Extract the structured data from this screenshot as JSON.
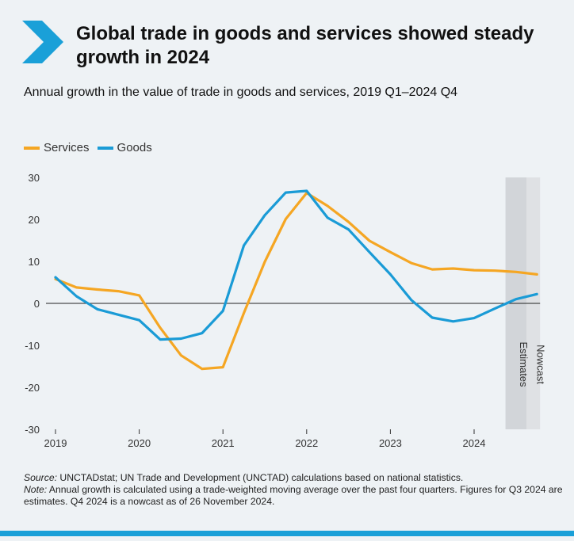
{
  "header": {
    "title": "Global trade in goods and services showed steady growth in 2024",
    "subtitle": "Annual growth in the value of trade in goods and services, 2019 Q1–2024 Q4"
  },
  "colors": {
    "services": "#f5a623",
    "goods": "#1a9bd6",
    "accent": "#1aa0d8"
  },
  "icons": {
    "title_marker": "chevron-right-icon"
  },
  "chart_data": {
    "type": "line",
    "x": [
      "2019Q1",
      "2019Q2",
      "2019Q3",
      "2019Q4",
      "2020Q1",
      "2020Q2",
      "2020Q3",
      "2020Q4",
      "2021Q1",
      "2021Q2",
      "2021Q3",
      "2021Q4",
      "2022Q1",
      "2022Q2",
      "2022Q3",
      "2022Q4",
      "2023Q1",
      "2023Q2",
      "2023Q3",
      "2023Q4",
      "2024Q1",
      "2024Q2",
      "2024Q3",
      "2024Q4"
    ],
    "series": [
      {
        "name": "Services",
        "values": [
          5.8,
          3.8,
          3.3,
          2.9,
          1.9,
          -5.8,
          -12.4,
          -15.6,
          -15.2,
          -2.3,
          9.9,
          20.1,
          26.3,
          23.2,
          19.4,
          14.9,
          12.2,
          9.6,
          8.1,
          8.3,
          7.9,
          7.8,
          7.5,
          6.9
        ]
      },
      {
        "name": "Goods",
        "values": [
          6.2,
          1.7,
          -1.4,
          -2.7,
          -4.0,
          -8.6,
          -8.4,
          -7.1,
          -1.8,
          13.8,
          21.0,
          26.4,
          26.8,
          20.4,
          17.6,
          12.2,
          6.9,
          0.8,
          -3.4,
          -4.3,
          -3.5,
          -1.2,
          1.0,
          2.2
        ]
      }
    ],
    "xticks": [
      {
        "label": "2019",
        "x": "2019Q1"
      },
      {
        "label": "2020",
        "x": "2020Q1"
      },
      {
        "label": "2021",
        "x": "2021Q1"
      },
      {
        "label": "2022",
        "x": "2022Q1"
      },
      {
        "label": "2023",
        "x": "2023Q1"
      },
      {
        "label": "2024",
        "x": "2024Q1"
      }
    ],
    "yticks": [
      30,
      20,
      10,
      0,
      -10,
      -20,
      -30
    ],
    "ylim": [
      -30,
      30
    ],
    "shaded_periods": [
      {
        "start": "2024Q3",
        "label": "Estimates"
      },
      {
        "start": "2024Q4",
        "label": "Nowcast"
      }
    ],
    "legend_position": "top-left",
    "grid": false
  },
  "notes": {
    "source_label": "Source:",
    "source_text": " UNCTADstat; UN Trade and Development (UNCTAD) calculations based on national statistics.",
    "note_label": "Note:",
    "note_text": " Annual growth is calculated using a trade-weighted moving average over the past four quarters. Figures for Q3 2024 are estimates. Q4 2024 is a nowcast as of 26 November 2024."
  }
}
